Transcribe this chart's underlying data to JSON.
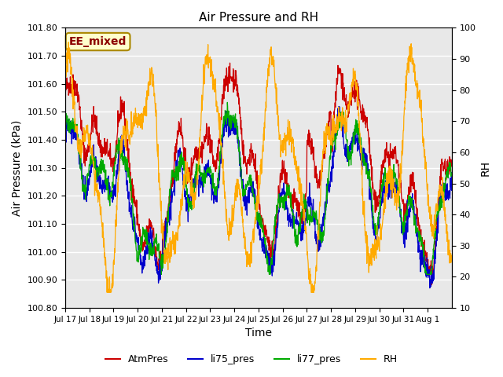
{
  "title": "Air Pressure and RH",
  "xlabel": "Time",
  "ylabel_left": "Air Pressure (kPa)",
  "ylabel_right": "RH",
  "annotation": "EE_mixed",
  "ylim_left": [
    100.8,
    101.8
  ],
  "ylim_right": [
    10,
    100
  ],
  "yticks_left": [
    100.8,
    100.9,
    101.0,
    101.1,
    101.2,
    101.3,
    101.4,
    101.5,
    101.6,
    101.7,
    101.8
  ],
  "yticks_right": [
    10,
    20,
    30,
    40,
    50,
    60,
    70,
    80,
    90,
    100
  ],
  "xtick_labels": [
    "Jul 17",
    "Jul 18",
    "Jul 19",
    "Jul 20",
    "Jul 21",
    "Jul 22",
    "Jul 23",
    "Jul 24",
    "Jul 25",
    "Jul 26",
    "Jul 27",
    "Jul 28",
    "Jul 29",
    "Jul 30",
    "Jul 31",
    "Aug 1"
  ],
  "colors": {
    "AtmPres": "#cc0000",
    "li75_pres": "#0000cc",
    "li77_pres": "#00aa00",
    "RH": "#ffaa00"
  },
  "legend_labels": [
    "AtmPres",
    "li75_pres",
    "li77_pres",
    "RH"
  ],
  "background_color": "#e8e8e8",
  "grid_color": "#ffffff",
  "annotation_bg": "#ffffcc",
  "annotation_border": "#aa8800"
}
